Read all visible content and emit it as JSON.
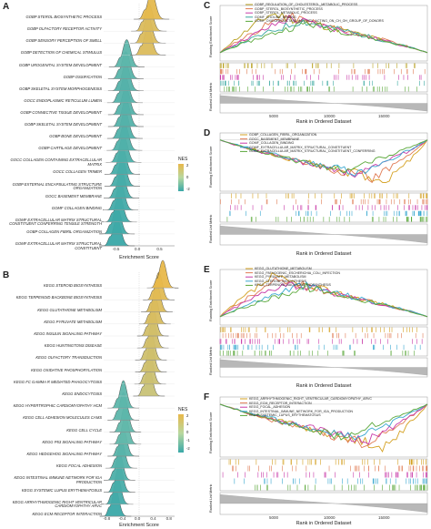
{
  "panels": {
    "A": {
      "label": "A",
      "xlabel": "Enrichment Score",
      "xticks": [
        "-0.5",
        "0.0",
        "0.5"
      ],
      "legend_title": "NES",
      "legend_ticks": [
        "2",
        "0",
        "-2"
      ],
      "terms": [
        "GOBP STEROL BIOSYNTHETIC PROCESS",
        "GOBP OLFACTORY RECEPTOR ACTIVITY",
        "GOBP SENSORY PERCEPTION OF SMELL",
        "GOBP DETECTION OF CHEMICAL STIMULUS",
        "GOBP UROGENITAL SYSTEM DEVELOPMENT",
        "GOBP OSSIFICATION",
        "GOBP SKELETAL SYSTEM MORPHOGENESIS",
        "GOCC ENDOPLASMIC RETICULUM LUMEN",
        "GOBP CONNECTIVE TISSUE DEVELOPMENT",
        "GOBP SKELETAL SYSTEM DEVELOPMENT",
        "GOBP BONE DEVELOPMENT",
        "GOBP CARTILAGE DEVELOPMENT",
        "GOCC COLLAGEN CONTAINING EXTRACELLULAR MATRIX",
        "GOCC COLLAGEN TRIMER",
        "GOBP EXTERNAL ENCAPSULATING STRUCTURE ORGANIZATION",
        "GOCC BASEMENT MEMBRANE",
        "GOMF COLLAGEN BINDING",
        "GOMF EXTRACELLULAR MATRIX STRUCTURAL CONSTITUENT CONFERRING TENSILE STRENGTH",
        "GOBP COLLAGEN FIBRIL ORGANIZATION",
        "GOMF EXTRACELLULAR MATRIX STRUCTURAL CONSTITUENT"
      ]
    },
    "B": {
      "label": "B",
      "xlabel": "Enrichment Score",
      "xticks": [
        "-0.8",
        "-0.4",
        "0.0",
        "0.4",
        "0.8"
      ],
      "legend_title": "NES",
      "legend_ticks": [
        "2",
        "1",
        "0",
        "-1",
        "-2"
      ],
      "terms": [
        "KEGG STEROID BIOSYNTHESIS",
        "KEGG TERPENOID BACKBONE BIOSYNTHESIS",
        "KEGG GLUTATHIONE METABOLISM",
        "KEGG PYRUVATE METABOLISM",
        "KEGG INSULIN SIGNALING PATHWAY",
        "KEGG HUNTINGTONS DISEASE",
        "KEGG OLFACTORY TRANSDUCTION",
        "KEGG OXIDATIVE PHOSPHORYLATION",
        "KEGG FC GAMMA R MEDIATED PHAGOCYTOSIS",
        "KEGG ENDOCYTOSIS",
        "KEGG HYPERTROPHIC CARDIOMYOPATHY HCM",
        "KEGG CELL ADHESION MOLECULES CAMS",
        "KEGG CELL CYCLE",
        "KEGG P53 SIGNALING PATHWAY",
        "KEGG HEDGEHOG SIGNALING PATHWAY",
        "KEGG FOCAL ADHESION",
        "KEGG INTESTINAL IMMUNE NETWORK FOR IGA PRODUCTION",
        "KEGG SYSTEMIC LUPUS ERYTHEMATOSUS",
        "KEGG ARRHYTHMOGENIC RIGHT VENTRICULAR CARDIOMYOPATHY ARVC",
        "KEGG ECM RECEPTOR INTERACTION"
      ]
    },
    "C": {
      "label": "C",
      "ylabel_top": "Running Enrichment Score",
      "ylabel_bottom": "Ranked List Metric",
      "xlabel": "Rank in Ordered Dataset",
      "xticks": [
        "5000",
        "10000",
        "15000"
      ],
      "legend": [
        {
          "name": "GOBP_REGULATION_OF_CHOLESTEROL_METABOLIC_PROCESS",
          "color": "#b8a020"
        },
        {
          "name": "GOBP_STEROL_BIOSYNTHETIC_PROCESS",
          "color": "#e07b54"
        },
        {
          "name": "GOBP_STEROL_METABOLIC_PROCESS",
          "color": "#c83aa8"
        },
        {
          "name": "GOMF_CHOLINE_BINDING",
          "color": "#3aa8a0"
        },
        {
          "name": "GOMF_OXIDOREDUCTASE_ACTIVITY_ACTING_ON_CH_OH_GROUP_OF_DONORS",
          "color": "#5aa83a"
        }
      ]
    },
    "D": {
      "label": "D",
      "ylabel_top": "Running Enrichment Score",
      "ylabel_bottom": "Ranked List Metric",
      "xlabel": "Rank in Ordered Dataset",
      "legend": [
        {
          "name": "GOBP_COLLAGEN_FIBRIL_ORGANIZATION",
          "color": "#d4a020"
        },
        {
          "name": "GOCC_BASEMENT_MEMBRANE",
          "color": "#e07b54"
        },
        {
          "name": "GOMF_COLLAGEN_BINDING",
          "color": "#c83aa8"
        },
        {
          "name": "GOMF_EXTRACELLULAR_MATRIX_STRUCTURAL_CONSTITUENT",
          "color": "#3aa8d0"
        },
        {
          "name": "GOMF_EXTRACELLULAR_MATRIX_STRUCTURAL_CONSTITUENT_CONFERRING",
          "color": "#5aa83a"
        }
      ]
    },
    "E": {
      "label": "E",
      "ylabel_top": "Running Enrichment Score",
      "ylabel_bottom": "Ranked List Metric",
      "xlabel": "Rank in Ordered Dataset",
      "legend": [
        {
          "name": "KEGG_GLUTATHIONE_METABOLISM",
          "color": "#d4a020"
        },
        {
          "name": "KEGG_PATHOGENIC_ESCHERICHIA_COLI_INFECTION",
          "color": "#e07b54"
        },
        {
          "name": "KEGG_PYRUVATE_METABOLISM",
          "color": "#c83aa8"
        },
        {
          "name": "KEGG_STEROID_BIOSYNTHESIS",
          "color": "#3aa8d0"
        },
        {
          "name": "KEGG_TERPENOID_BACKBONE_BIOSYNTHESIS",
          "color": "#5aa83a"
        }
      ]
    },
    "F": {
      "label": "F",
      "ylabel_top": "Running Enrichment Score",
      "ylabel_bottom": "Ranked List Metric",
      "xlabel": "Rank in Ordered Dataset",
      "xticks": [
        "5000",
        "10000",
        "15000"
      ],
      "legend": [
        {
          "name": "KEGG_ARRHYTHMOGENIC_RIGHT_VENTRICULAR_CARDIOMYOPATHY_ARVC",
          "color": "#d4a020"
        },
        {
          "name": "KEGG_ECM_RECEPTOR_INTERACTION",
          "color": "#e07b54"
        },
        {
          "name": "KEGG_FOCAL_ADHESION",
          "color": "#c83aa8"
        },
        {
          "name": "KEGG_INTESTINAL_IMMUNE_NETWORK_FOR_IGA_PRODUCTION",
          "color": "#3aa8d0"
        },
        {
          "name": "KEGG_SYSTEMIC_LUPUS_ERYTHEMATOSUS",
          "color": "#5aa83a"
        }
      ]
    }
  },
  "colors": {
    "nes_high": "#e8b84a",
    "nes_mid": "#9fd0b0",
    "nes_low": "#3aa8a8"
  },
  "chart_data": [
    {
      "type": "ridgeline",
      "panel": "A",
      "xlabel": "Enrichment Score",
      "xlim": [
        -0.8,
        0.8
      ],
      "categories": [
        "GOBP STEROL BIOSYNTHETIC PROCESS",
        "GOBP OLFACTORY RECEPTOR ACTIVITY",
        "GOBP SENSORY PERCEPTION OF SMELL",
        "GOBP DETECTION OF CHEMICAL STIMULUS",
        "GOBP UROGENITAL SYSTEM DEVELOPMENT",
        "GOBP OSSIFICATION",
        "GOBP SKELETAL SYSTEM MORPHOGENESIS",
        "GOCC ENDOPLASMIC RETICULUM LUMEN",
        "GOBP CONNECTIVE TISSUE DEVELOPMENT",
        "GOBP SKELETAL SYSTEM DEVELOPMENT",
        "GOBP BONE DEVELOPMENT",
        "GOBP CARTILAGE DEVELOPMENT",
        "GOCC COLLAGEN CONTAINING EXTRACELLULAR MATRIX",
        "GOCC COLLAGEN TRIMER",
        "GOBP EXTERNAL ENCAPSULATING STRUCTURE ORGANIZATION",
        "GOCC BASEMENT MEMBRANE",
        "GOMF COLLAGEN BINDING",
        "GOMF EXTRACELLULAR MATRIX STRUCTURAL CONSTITUENT CONFERRING TENSILE STRENGTH",
        "GOBP COLLAGEN FIBRIL ORGANIZATION",
        "GOMF EXTRACELLULAR MATRIX STRUCTURAL CONSTITUENT"
      ],
      "peak_es": [
        0.28,
        0.22,
        0.2,
        0.2,
        -0.28,
        -0.3,
        -0.3,
        -0.32,
        -0.3,
        -0.3,
        -0.32,
        -0.33,
        -0.35,
        -0.38,
        -0.38,
        -0.4,
        -0.42,
        -0.45,
        -0.5,
        -0.5
      ],
      "nes": [
        2.2,
        1.9,
        1.9,
        1.9,
        -1.5,
        -1.6,
        -1.7,
        -1.7,
        -1.7,
        -1.7,
        -1.8,
        -1.8,
        -1.9,
        -2.0,
        -2.0,
        -2.0,
        -2.1,
        -2.2,
        -2.2,
        -2.3
      ]
    },
    {
      "type": "ridgeline",
      "panel": "B",
      "xlabel": "Enrichment Score",
      "xlim": [
        -0.9,
        0.9
      ],
      "categories": [
        "KEGG STEROID BIOSYNTHESIS",
        "KEGG TERPENOID BACKBONE BIOSYNTHESIS",
        "KEGG GLUTATHIONE METABOLISM",
        "KEGG PYRUVATE METABOLISM",
        "KEGG INSULIN SIGNALING PATHWAY",
        "KEGG HUNTINGTONS DISEASE",
        "KEGG OLFACTORY TRANSDUCTION",
        "KEGG OXIDATIVE PHOSPHORYLATION",
        "KEGG FC GAMMA R MEDIATED PHAGOCYTOSIS",
        "KEGG ENDOCYTOSIS",
        "KEGG HYPERTROPHIC CARDIOMYOPATHY HCM",
        "KEGG CELL ADHESION MOLECULES CAMS",
        "KEGG CELL CYCLE",
        "KEGG P53 SIGNALING PATHWAY",
        "KEGG HEDGEHOG SIGNALING PATHWAY",
        "KEGG FOCAL ADHESION",
        "KEGG INTESTINAL IMMUNE NETWORK FOR IGA PRODUCTION",
        "KEGG SYSTEMIC LUPUS ERYTHEMATOSUS",
        "KEGG ARRHYTHMOGENIC RIGHT VENTRICULAR CARDIOMYOPATHY ARVC",
        "KEGG ECM RECEPTOR INTERACTION"
      ],
      "peak_es": [
        0.6,
        0.5,
        0.45,
        0.4,
        0.35,
        0.35,
        0.3,
        0.3,
        0.28,
        0.25,
        -0.4,
        -0.4,
        -0.35,
        -0.35,
        -0.4,
        -0.45,
        -0.5,
        -0.5,
        -0.55,
        -0.6
      ],
      "nes": [
        2.3,
        2.1,
        1.9,
        1.8,
        1.6,
        1.6,
        1.5,
        1.5,
        1.4,
        1.3,
        -1.5,
        -1.5,
        -1.4,
        -1.4,
        -1.6,
        -1.7,
        -1.9,
        -2.0,
        -2.1,
        -2.3
      ]
    }
  ]
}
